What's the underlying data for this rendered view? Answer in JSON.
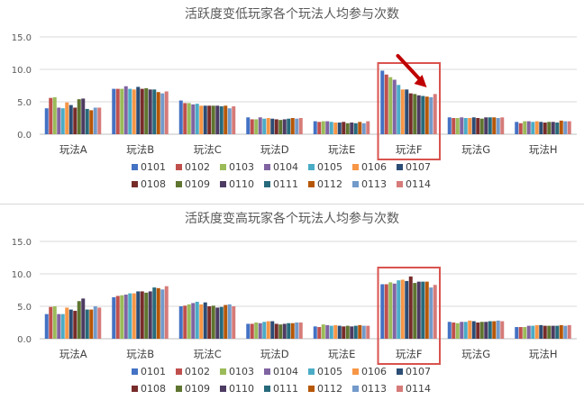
{
  "colors": {
    "series": [
      "#4472c4",
      "#c0504d",
      "#9bbb59",
      "#8064a2",
      "#4bacc6",
      "#f79646",
      "#2c4d75",
      "#772c2a",
      "#5f7530",
      "#4d3b62",
      "#276a7c",
      "#b65708",
      "#729aca",
      "#d67b79"
    ],
    "highlight": "#d9534f",
    "grid": "#d9d9d9",
    "axis": "#bfbfbf"
  },
  "chart_data": [
    {
      "type": "bar",
      "title": "活跃度变低玩家各个玩法人均参与次数",
      "xlabel": "",
      "ylabel": "",
      "ylim": [
        0,
        15
      ],
      "yticks": [
        "0.0",
        "5.0",
        "10.0",
        "15.0"
      ],
      "grid": true,
      "legend_position": "bottom",
      "categories": [
        "玩法A",
        "玩法B",
        "玩法C",
        "玩法D",
        "玩法E",
        "玩法F",
        "玩法G",
        "玩法H"
      ],
      "highlight_category": "玩法F",
      "arrow_annotation": true,
      "series": [
        {
          "name": "0101",
          "values": [
            4.0,
            7.0,
            5.2,
            2.6,
            2.0,
            9.8,
            2.6,
            1.9
          ]
        },
        {
          "name": "0102",
          "values": [
            5.6,
            7.0,
            4.8,
            2.3,
            1.9,
            9.2,
            2.5,
            1.7
          ]
        },
        {
          "name": "0103",
          "values": [
            5.7,
            7.0,
            4.8,
            2.3,
            2.0,
            8.8,
            2.5,
            2.0
          ]
        },
        {
          "name": "0104",
          "values": [
            4.1,
            7.4,
            4.6,
            2.6,
            2.0,
            8.4,
            2.6,
            2.0
          ]
        },
        {
          "name": "0105",
          "values": [
            4.0,
            7.0,
            4.7,
            2.4,
            1.9,
            7.6,
            2.5,
            1.9
          ]
        },
        {
          "name": "0106",
          "values": [
            4.9,
            6.9,
            4.4,
            2.5,
            1.8,
            6.9,
            2.5,
            2.0
          ]
        },
        {
          "name": "0107",
          "values": [
            4.5,
            7.3,
            4.4,
            2.4,
            1.8,
            6.9,
            2.6,
            1.9
          ]
        },
        {
          "name": "0108",
          "values": [
            4.1,
            7.0,
            4.4,
            2.3,
            1.9,
            6.3,
            2.5,
            1.8
          ]
        },
        {
          "name": "0109",
          "values": [
            5.4,
            7.1,
            4.4,
            2.2,
            1.7,
            6.2,
            2.4,
            1.9
          ]
        },
        {
          "name": "0110",
          "values": [
            5.5,
            6.9,
            4.4,
            2.3,
            1.8,
            6.0,
            2.6,
            1.9
          ]
        },
        {
          "name": "0111",
          "values": [
            3.9,
            6.9,
            4.3,
            2.4,
            1.7,
            5.9,
            2.6,
            1.8
          ]
        },
        {
          "name": "0112",
          "values": [
            3.7,
            6.5,
            4.4,
            2.5,
            1.9,
            5.8,
            2.6,
            2.1
          ]
        },
        {
          "name": "0113",
          "values": [
            4.1,
            6.3,
            4.0,
            2.4,
            1.7,
            5.7,
            2.5,
            2.0
          ]
        },
        {
          "name": "0114",
          "values": [
            4.1,
            6.6,
            4.3,
            2.5,
            2.0,
            6.2,
            2.6,
            2.0
          ]
        }
      ]
    },
    {
      "type": "bar",
      "title": "活跃度变高玩家各个玩法人均参与次数",
      "xlabel": "",
      "ylabel": "",
      "ylim": [
        0,
        15
      ],
      "yticks": [
        "0.0",
        "5.0",
        "10.0",
        "15.0"
      ],
      "grid": true,
      "legend_position": "bottom",
      "categories": [
        "玩法A",
        "玩法B",
        "玩法C",
        "玩法D",
        "玩法E",
        "玩法F",
        "玩法G",
        "玩法H"
      ],
      "highlight_category": "玩法F",
      "arrow_annotation": false,
      "series": [
        {
          "name": "0101",
          "values": [
            3.8,
            6.4,
            5.0,
            2.3,
            1.9,
            8.4,
            2.6,
            1.8
          ]
        },
        {
          "name": "0102",
          "values": [
            4.9,
            6.6,
            5.1,
            2.3,
            1.8,
            8.4,
            2.5,
            1.8
          ]
        },
        {
          "name": "0103",
          "values": [
            5.0,
            6.7,
            5.3,
            2.5,
            2.2,
            8.7,
            2.4,
            1.8
          ]
        },
        {
          "name": "0104",
          "values": [
            3.8,
            6.8,
            5.5,
            2.4,
            2.1,
            8.5,
            2.6,
            2.0
          ]
        },
        {
          "name": "0105",
          "values": [
            3.8,
            7.0,
            5.7,
            2.6,
            2.0,
            9.0,
            2.6,
            2.0
          ]
        },
        {
          "name": "0106",
          "values": [
            4.8,
            7.0,
            5.3,
            2.7,
            2.1,
            9.1,
            2.8,
            2.1
          ]
        },
        {
          "name": "0107",
          "values": [
            4.5,
            7.3,
            5.6,
            2.7,
            2.0,
            8.9,
            2.7,
            2.1
          ]
        },
        {
          "name": "0108",
          "values": [
            4.3,
            7.3,
            5.0,
            2.3,
            1.9,
            9.6,
            2.5,
            2.0
          ]
        },
        {
          "name": "0109",
          "values": [
            5.8,
            7.1,
            5.1,
            2.2,
            2.0,
            8.6,
            2.6,
            2.0
          ]
        },
        {
          "name": "0110",
          "values": [
            6.2,
            7.3,
            4.8,
            2.3,
            1.9,
            8.8,
            2.6,
            2.0
          ]
        },
        {
          "name": "0111",
          "values": [
            4.5,
            7.9,
            4.9,
            2.4,
            2.0,
            8.8,
            2.7,
            2.0
          ]
        },
        {
          "name": "0112",
          "values": [
            4.5,
            7.8,
            5.2,
            2.4,
            2.1,
            8.8,
            2.7,
            2.1
          ]
        },
        {
          "name": "0113",
          "values": [
            5.0,
            7.6,
            5.3,
            2.5,
            2.0,
            7.9,
            2.8,
            2.0
          ]
        },
        {
          "name": "0114",
          "values": [
            4.8,
            8.1,
            5.0,
            2.5,
            2.0,
            8.3,
            2.7,
            2.1
          ]
        }
      ]
    }
  ]
}
